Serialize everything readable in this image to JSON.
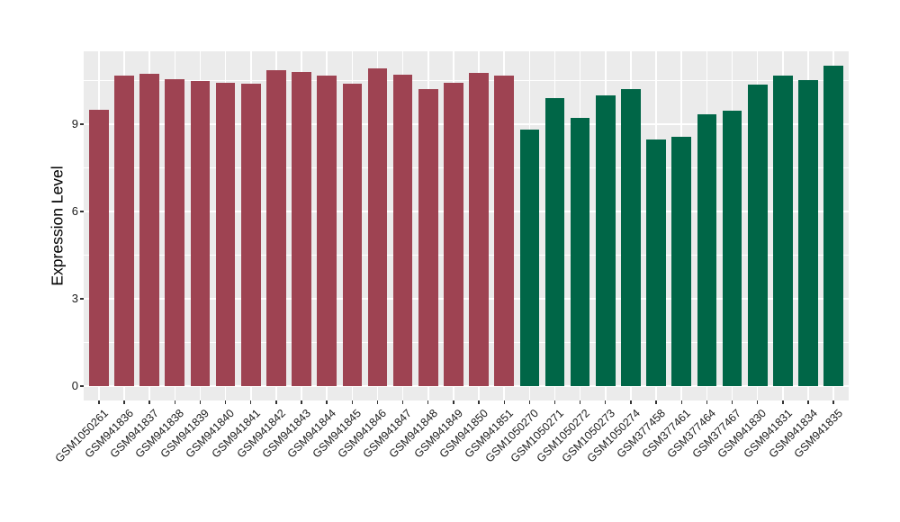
{
  "chart_data": {
    "type": "bar",
    "title": "",
    "xlabel": "",
    "ylabel": "Expression Level",
    "ylim": [
      0,
      11.5
    ],
    "yticks": [
      0,
      3,
      6,
      9
    ],
    "yticks_minor": [
      1.5,
      4.5,
      7.5,
      10.5
    ],
    "grid": "on",
    "legend_position": "none",
    "categories": [
      "GSM1050261",
      "GSM941836",
      "GSM941837",
      "GSM941838",
      "GSM941839",
      "GSM941840",
      "GSM941841",
      "GSM941842",
      "GSM941843",
      "GSM941844",
      "GSM941845",
      "GSM941846",
      "GSM941847",
      "GSM941848",
      "GSM941849",
      "GSM941850",
      "GSM941851",
      "GSM1050270",
      "GSM1050271",
      "GSM1050272",
      "GSM1050273",
      "GSM1050274",
      "GSM377458",
      "GSM377461",
      "GSM377464",
      "GSM377467",
      "GSM941830",
      "GSM941831",
      "GSM941834",
      "GSM941835"
    ],
    "values": [
      9.5,
      10.65,
      10.72,
      10.55,
      10.48,
      10.42,
      10.4,
      10.85,
      10.78,
      10.68,
      10.38,
      10.9,
      10.7,
      10.2,
      10.42,
      10.75,
      10.65,
      8.8,
      9.9,
      9.2,
      10.0,
      10.2,
      8.47,
      8.55,
      9.32,
      9.45,
      10.35,
      10.65,
      10.5,
      11.0
    ],
    "bar_groups": [
      "red",
      "red",
      "red",
      "red",
      "red",
      "red",
      "red",
      "red",
      "red",
      "red",
      "red",
      "red",
      "red",
      "red",
      "red",
      "red",
      "red",
      "green",
      "green",
      "green",
      "green",
      "green",
      "green",
      "green",
      "green",
      "green",
      "green",
      "green",
      "green",
      "green"
    ],
    "group_colors": {
      "red": "#9E4352",
      "green": "#006647"
    },
    "panel_background": "#EBEBEB",
    "gridline_color": "#FFFFFF",
    "tick_color": "#333333",
    "axis_text_color": "#1a1a1a"
  }
}
